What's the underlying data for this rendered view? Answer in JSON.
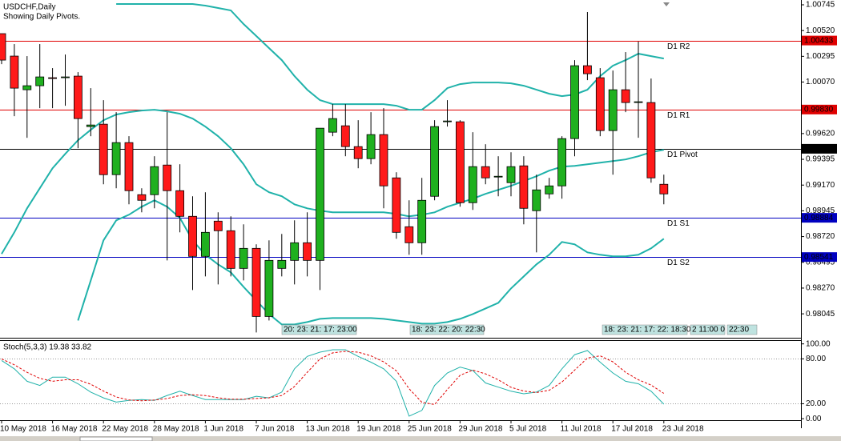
{
  "chart_data": {
    "type": "candlestick",
    "title": "USDCHF,Daily",
    "subtitle": "Showing Daily Pivots.",
    "categories": [
      "10 May 2018",
      null,
      null,
      null,
      "16 May 2018",
      null,
      null,
      null,
      "22 May 2018",
      null,
      null,
      null,
      "28 May 2018",
      null,
      null,
      null,
      "1 Jun 2018",
      null,
      null,
      null,
      "7 Jun 2018",
      null,
      null,
      null,
      "13 Jun 2018",
      null,
      null,
      null,
      "19 Jun 2018",
      null,
      null,
      null,
      "25 Jun 2018",
      null,
      null,
      null,
      "29 Jun 2018",
      null,
      null,
      null,
      "5 Jul 2018",
      null,
      null,
      null,
      "11 Jul 2018",
      null,
      null,
      null,
      "17 Jul 2018",
      null,
      null,
      null,
      "23 Jul 2018"
    ],
    "open": [
      1.00493,
      1.00297,
      1.00003,
      1.00038,
      1.00108,
      1.00108,
      1.00122,
      0.99681,
      0.99702,
      0.99261,
      0.99541,
      0.99086,
      0.99086,
      0.99345,
      0.99121,
      0.98897,
      0.98547,
      0.98855,
      0.98771,
      0.98442,
      0.98617,
      0.98022,
      0.98442,
      0.98512,
      0.98666,
      0.98512,
      0.99632,
      0.99688,
      0.99506,
      0.99401,
      0.99611,
      0.99233,
      0.98806,
      0.98666,
      0.99072,
      0.99723,
      0.99723,
      0.99016,
      0.99331,
      0.9924,
      0.99191,
      0.99338,
      0.98946,
      0.99093,
      0.99163,
      0.99576,
      1.00213,
      1.00108,
      0.99646,
      1.00003,
      0.99891,
      0.99891,
      0.99177
    ],
    "high": [
      1.00493,
      1.00402,
      1.00297,
      1.00402,
      1.00192,
      1.00311,
      1.00157,
      1.00017,
      0.99912,
      0.99807,
      0.99597,
      0.99142,
      0.99422,
      0.99807,
      0.99352,
      0.99072,
      0.99107,
      0.98932,
      0.98897,
      0.98827,
      0.98652,
      0.98687,
      0.98743,
      0.98862,
      0.98932,
      0.99667,
      0.99877,
      0.99877,
      0.99737,
      0.99807,
      0.99842,
      0.99282,
      0.99037,
      0.99233,
      0.99737,
      0.99912,
      0.99737,
      0.99632,
      0.99527,
      0.99422,
      0.99457,
      0.99422,
      0.99261,
      0.99233,
      0.99597,
      1.00262,
      1.00682,
      1.00192,
      1.00171,
      1.00332,
      1.00423,
      1.00101,
      0.99261
    ],
    "low": [
      1.00227,
      0.99772,
      0.99583,
      0.99842,
      0.99842,
      0.99863,
      0.99492,
      0.99597,
      0.99177,
      0.99142,
      0.99002,
      0.98932,
      0.98967,
      0.98512,
      0.98757,
      0.98253,
      0.98372,
      0.98302,
      0.98372,
      0.98337,
      0.97882,
      0.97987,
      0.98372,
      0.98302,
      0.98372,
      0.98253,
      0.99597,
      0.99422,
      0.99317,
      0.99352,
      0.98967,
      0.98701,
      0.98561,
      0.98561,
      0.99037,
      0.99681,
      0.98981,
      0.98953,
      0.99177,
      0.99072,
      0.99072,
      0.98827,
      0.98582,
      0.99051,
      0.99051,
      0.99422,
      1.00087,
      0.99597,
      0.99261,
      0.99807,
      0.99583,
      0.99191,
      0.99002
    ],
    "close": [
      1.00262,
      1.00017,
      1.00038,
      1.00115,
      1.00101,
      1.00115,
      0.99751,
      0.99695,
      0.99261,
      0.99541,
      0.99121,
      0.99037,
      0.99331,
      0.99121,
      0.98897,
      0.98547,
      0.98757,
      0.98771,
      0.98442,
      0.98617,
      0.98022,
      0.98512,
      0.98512,
      0.98666,
      0.98512,
      0.99667,
      0.99751,
      0.99506,
      0.99401,
      0.99611,
      0.99163,
      0.98757,
      0.98666,
      0.99037,
      0.99681,
      0.9973,
      0.99016,
      0.99331,
      0.99233,
      0.99247,
      0.99331,
      0.98967,
      0.99128,
      0.99163,
      0.99576,
      1.00213,
      1.00143,
      0.99646,
      1.00003,
      0.99891,
      0.99898,
      0.99233,
      0.99093
    ],
    "bull_color": "#1fb01f",
    "bear_color": "#ff1a1a",
    "ylim": [
      0.97836,
      1.00787
    ],
    "yticks": [
      1.00745,
      {
        "value": 1.0052,
        "label": "1.00520"
      },
      1.00295,
      {
        "value": 1.0007,
        "label": "1.00070"
      },
      {
        "value": 0.9962,
        "label": "0.99620"
      },
      0.99395,
      {
        "value": 0.9917,
        "label": "0.99170"
      },
      0.98945,
      {
        "value": 0.9872,
        "label": "0.98720"
      },
      0.98495,
      {
        "value": 0.9827,
        "label": "0.98270"
      },
      0.98045
    ],
    "overlays": [
      {
        "color": "#20b2aa",
        "values": [
          null,
          null,
          null,
          null,
          null,
          null,
          null,
          null,
          null,
          1.00752,
          1.00752,
          1.00752,
          1.00752,
          1.00752,
          1.00752,
          1.00752,
          1.00738,
          1.00717,
          1.00696,
          1.00577,
          1.00472,
          1.00367,
          1.00262,
          1.00122,
          1.00003,
          0.99912,
          0.99877,
          0.99877,
          0.99877,
          0.99877,
          0.99877,
          0.99863,
          0.99828,
          0.99828,
          0.99912,
          1.00017,
          1.00052,
          1.00066,
          1.00066,
          1.00066,
          1.00059,
          1.00038,
          1.00003,
          0.99968,
          0.99947,
          0.99961,
          1.00003,
          1.00122,
          1.00213,
          1.00262,
          1.00318,
          1.00297,
          1.00276
        ]
      },
      {
        "color": "#20b2aa",
        "values": [
          0.98568,
          0.98757,
          0.98967,
          0.99142,
          0.99317,
          0.99443,
          0.99562,
          0.99653,
          0.99737,
          0.99786,
          0.99807,
          0.99821,
          0.99828,
          0.99814,
          0.99793,
          0.99751,
          0.99681,
          0.99597,
          0.99492,
          0.99352,
          0.99177,
          0.99107,
          0.99072,
          0.99002,
          0.98967,
          0.98946,
          0.98932,
          0.98932,
          0.98932,
          0.98932,
          0.98932,
          0.98918,
          0.98897,
          0.98911,
          0.98932,
          0.98981,
          0.99016,
          0.99051,
          0.99093,
          0.99128,
          0.99163,
          0.99205,
          0.99247,
          0.99296,
          0.99331,
          0.99338,
          0.99352,
          0.99366,
          0.9938,
          0.99394,
          0.99422,
          0.99457,
          0.99478
        ]
      },
      {
        "color": "#20b2aa",
        "values": [
          null,
          null,
          null,
          null,
          null,
          null,
          0.97987,
          0.98337,
          0.98687,
          0.98862,
          0.98911,
          0.98981,
          0.99037,
          0.98981,
          0.98883,
          0.98687,
          0.98561,
          0.98477,
          0.98407,
          0.98281,
          0.98162,
          0.98043,
          0.97952,
          0.97952,
          0.97973,
          0.98001,
          0.98008,
          0.98008,
          0.98008,
          0.98008,
          0.98001,
          0.97987,
          0.97973,
          0.97959,
          0.97959,
          0.97973,
          0.98001,
          0.98043,
          0.98092,
          0.98141,
          0.98267,
          0.98372,
          0.98477,
          0.98561,
          0.98673,
          0.98652,
          0.98582,
          0.98561,
          0.98547,
          0.98547,
          0.98561,
          0.98617,
          0.98701
        ]
      }
    ],
    "pivots": {
      "names": [
        "D1 R2",
        "D1 R1",
        "D1 Pivot",
        "D1 S1",
        "D1 S2"
      ],
      "values": [
        1.00433,
        0.9983,
        0.99487,
        0.98884,
        0.98541
      ],
      "value_labels": [
        "1.00433",
        "0.99830",
        "0.99487",
        "0.98884",
        "0.98541"
      ],
      "colors": [
        "#e00000",
        "#e00000",
        "#000000",
        "#0000c0",
        "#0000c0"
      ]
    },
    "annotations": [
      "20: 23: 21: 17: 23:00",
      "18: 23: 22: 20: 22:30",
      "18: 23: 21: 17: 22: 18:30",
      "2 11:00 0",
      "22:30"
    ],
    "stochastic": {
      "title": "Stoch(5,3,3) 19.38 33.82",
      "ylim": [
        -2,
        105
      ],
      "yticks": [
        {
          "value": 100,
          "label": "100.00"
        },
        {
          "value": 80,
          "label": "80.00"
        },
        {
          "value": 20,
          "label": "20.00"
        },
        {
          "value": 0,
          "label": "0.00"
        }
      ],
      "levels": [
        80,
        20
      ],
      "series": [
        {
          "color": "#20b2aa",
          "dashed": false,
          "values": [
            77.8,
            66.7,
            50,
            44.4,
            55.6,
            55.6,
            46.7,
            35.6,
            27.8,
            22.2,
            24.4,
            25.6,
            24.4,
            31.1,
            36.7,
            31.1,
            25.6,
            25.6,
            25.6,
            25.6,
            30,
            27.8,
            35.6,
            66.7,
            83.3,
            88.9,
            92.2,
            92.2,
            83.3,
            75.6,
            66.7,
            50,
            3.3,
            11.1,
            44.4,
            61.1,
            68.9,
            64.4,
            47.8,
            42.2,
            36.7,
            33.3,
            35.6,
            44.4,
            66.7,
            85.6,
            91.1,
            75.6,
            61.1,
            50,
            46.7,
            36.7,
            19.38
          ]
        },
        {
          "color": "#e00000",
          "dashed": true,
          "values": [
            80,
            72,
            62,
            54,
            50,
            52,
            52,
            46,
            37,
            29,
            25,
            24,
            25,
            27,
            31,
            32,
            31,
            28,
            26,
            26,
            27,
            28,
            31,
            43,
            62,
            80,
            88,
            90,
            89,
            84,
            76,
            64,
            40,
            22,
            19,
            39,
            58,
            65,
            60,
            52,
            42,
            37,
            35,
            38,
            49,
            65,
            81,
            84,
            76,
            62,
            52,
            45,
            33.82
          ]
        }
      ]
    }
  }
}
